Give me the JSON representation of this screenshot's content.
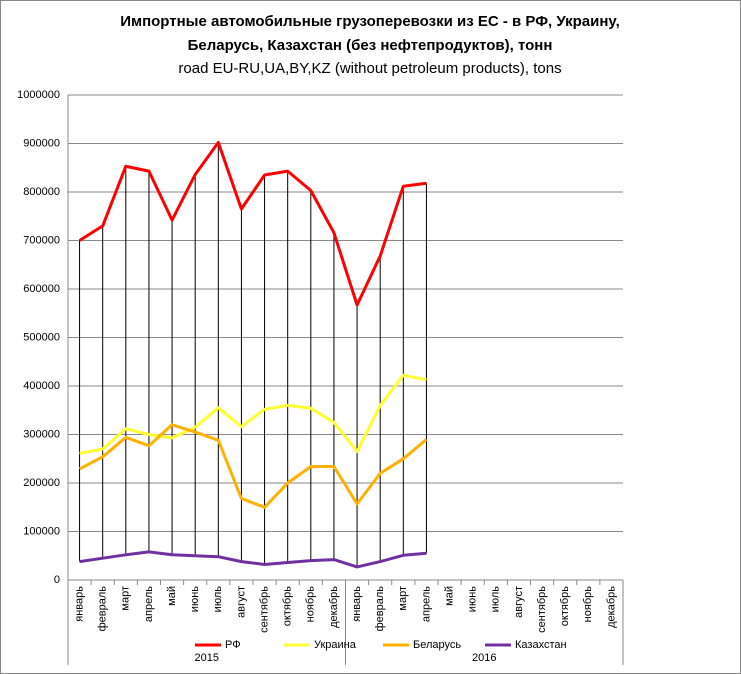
{
  "chart_data": {
    "type": "line",
    "title_lines": [
      "Импортные автомобильные грузоперевозки из ЕС - в РФ, Украину,",
      "Беларусь, Казахстан (без нефтепродуктов), тонн"
    ],
    "subtitle": "road EU-RU,UA,BY,KZ (without petroleum products), tons",
    "categories": [
      "январь",
      "февраль",
      "март",
      "апрель",
      "май",
      "июнь",
      "июль",
      "август",
      "сентябрь",
      "октябрь",
      "ноябрь",
      "декабрь",
      "январь",
      "февраль",
      "март",
      "апрель",
      "май",
      "июнь",
      "июль",
      "август",
      "сентябрь",
      "октябрь",
      "ноябрь",
      "декабрь"
    ],
    "year_groups": [
      "2015",
      "2016"
    ],
    "series": [
      {
        "name": "РФ",
        "color": "#ff0000",
        "values": [
          700000,
          730000,
          853000,
          843000,
          742000,
          836000,
          902000,
          765000,
          835000,
          843000,
          803000,
          716000,
          567000,
          668000,
          812000,
          818000,
          null,
          null,
          null,
          null,
          null,
          null,
          null,
          null
        ]
      },
      {
        "name": "Украина",
        "color": "#ffff33",
        "values": [
          261000,
          270000,
          312000,
          300000,
          293000,
          315000,
          355000,
          316000,
          352000,
          360000,
          354000,
          325000,
          265000,
          360000,
          422000,
          413000,
          null,
          null,
          null,
          null,
          null,
          null,
          null,
          null
        ]
      },
      {
        "name": "Беларусь",
        "color": "#ffb000",
        "values": [
          229000,
          254000,
          294000,
          277000,
          320000,
          305000,
          288000,
          168000,
          150000,
          200000,
          234000,
          234000,
          157000,
          220000,
          250000,
          290000,
          null,
          null,
          null,
          null,
          null,
          null,
          null,
          null
        ]
      },
      {
        "name": "Казахстан",
        "color": "#7030a0",
        "values": [
          38000,
          45000,
          52000,
          58000,
          52000,
          50000,
          48000,
          38000,
          32000,
          36000,
          40000,
          42000,
          27000,
          38000,
          51000,
          55000,
          null,
          null,
          null,
          null,
          null,
          null,
          null,
          null
        ]
      }
    ],
    "ylim": [
      0,
      1000000
    ],
    "yticks": [
      0,
      100000,
      200000,
      300000,
      400000,
      500000,
      600000,
      700000,
      800000,
      900000,
      1000000
    ],
    "grid": true,
    "high_low_lines": true,
    "legend": "bottom"
  }
}
